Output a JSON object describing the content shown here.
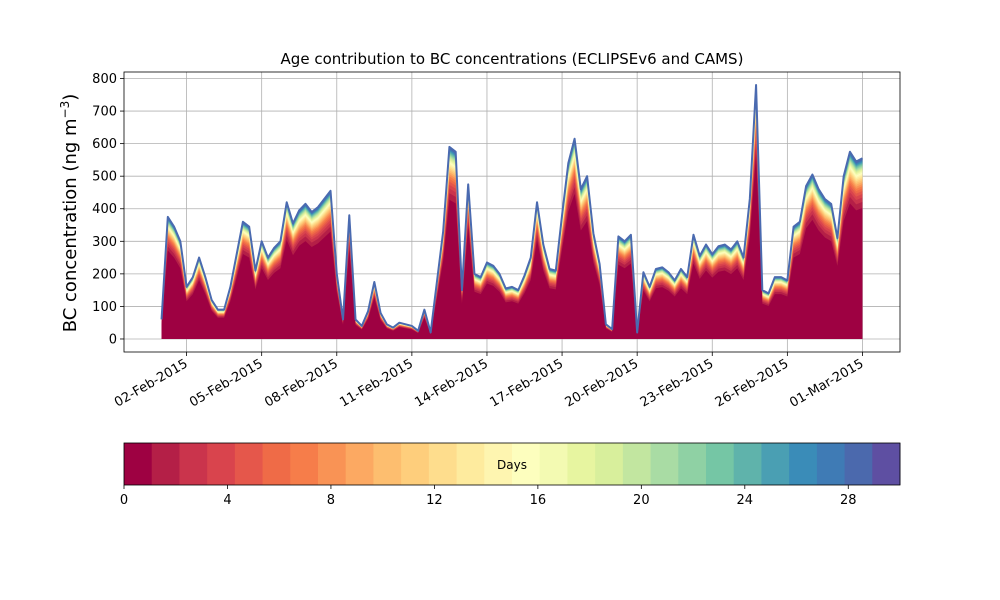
{
  "chart_data": {
    "type": "area",
    "title": "Age contribution to BC concentrations (ECLIPSEv6 and CAMS)",
    "ylabel": "BC concentration (ng m",
    "ylabel_sup": "−3",
    "ylabel_close": ")",
    "xlabel": "",
    "ylim": [
      -40,
      820
    ],
    "yticks": [
      0,
      100,
      200,
      300,
      400,
      500,
      600,
      700,
      800
    ],
    "xlim": [
      "2015-01-30T12:00",
      "2015-03-02T12:00"
    ],
    "x_tick_labels": [
      "02-Feb-2015",
      "05-Feb-2015",
      "08-Feb-2015",
      "11-Feb-2015",
      "14-Feb-2015",
      "17-Feb-2015",
      "20-Feb-2015",
      "23-Feb-2015",
      "26-Feb-2015",
      "01-Mar-2015"
    ],
    "x_tick_dates": [
      "2015-02-02",
      "2015-02-05",
      "2015-02-08",
      "2015-02-11",
      "2015-02-14",
      "2015-02-17",
      "2015-02-20",
      "2015-02-23",
      "2015-02-26",
      "2015-03-01"
    ],
    "grid": true,
    "colorbar": {
      "label": "Days",
      "min": 0,
      "max": 30,
      "ticks": [
        0,
        4,
        8,
        12,
        16,
        20,
        24,
        28
      ],
      "tick_labels": [
        "0",
        "4",
        "8",
        "12",
        "16",
        "20",
        "24",
        "28"
      ],
      "colors": [
        "#9e0142",
        "#b41f47",
        "#ca344c",
        "#d9444d",
        "#e5574b",
        "#ef6b47",
        "#f67d4a",
        "#f99355",
        "#fca962",
        "#fdbe6f",
        "#fece7c",
        "#fedd8d",
        "#feeb9e",
        "#fef5b0",
        "#fdfebe",
        "#f3fab2",
        "#e7f5a0",
        "#d8ef9c",
        "#c2e6a0",
        "#a9dca4",
        "#8fd1a4",
        "#75c6a5",
        "#5fb3ab",
        "#4a9fb3",
        "#3a8cb8",
        "#3f7bb5",
        "#4b69ad",
        "#5e4fa2"
      ]
    },
    "series": [
      {
        "stat": "total",
        "color": "#4a6ab0",
        "x": [
          "2015-02-01T00:00",
          "2015-02-01T06:00",
          "2015-02-01T12:00",
          "2015-02-01T18:00",
          "2015-02-02T00:00",
          "2015-02-02T06:00",
          "2015-02-02T12:00",
          "2015-02-02T18:00",
          "2015-02-03T00:00",
          "2015-02-03T06:00",
          "2015-02-03T12:00",
          "2015-02-03T18:00",
          "2015-02-04T00:00",
          "2015-02-04T06:00",
          "2015-02-04T12:00",
          "2015-02-04T18:00",
          "2015-02-05T00:00",
          "2015-02-05T06:00",
          "2015-02-05T12:00",
          "2015-02-05T18:00",
          "2015-02-06T00:00",
          "2015-02-06T06:00",
          "2015-02-06T12:00",
          "2015-02-06T18:00",
          "2015-02-07T00:00",
          "2015-02-07T06:00",
          "2015-02-07T12:00",
          "2015-02-07T18:00",
          "2015-02-08T00:00",
          "2015-02-08T06:00",
          "2015-02-08T12:00",
          "2015-02-08T18:00",
          "2015-02-09T00:00",
          "2015-02-09T06:00",
          "2015-02-09T12:00",
          "2015-02-09T18:00",
          "2015-02-10T00:00",
          "2015-02-10T06:00",
          "2015-02-10T12:00",
          "2015-02-10T18:00",
          "2015-02-11T00:00",
          "2015-02-11T06:00",
          "2015-02-11T12:00",
          "2015-02-11T18:00",
          "2015-02-12T00:00",
          "2015-02-12T06:00",
          "2015-02-12T12:00",
          "2015-02-12T18:00",
          "2015-02-13T00:00",
          "2015-02-13T06:00",
          "2015-02-13T12:00",
          "2015-02-13T18:00",
          "2015-02-14T00:00",
          "2015-02-14T06:00",
          "2015-02-14T12:00",
          "2015-02-14T18:00",
          "2015-02-15T00:00",
          "2015-02-15T06:00",
          "2015-02-15T12:00",
          "2015-02-15T18:00",
          "2015-02-16T00:00",
          "2015-02-16T06:00",
          "2015-02-16T12:00",
          "2015-02-16T18:00",
          "2015-02-17T00:00",
          "2015-02-17T06:00",
          "2015-02-17T12:00",
          "2015-02-17T18:00",
          "2015-02-18T00:00",
          "2015-02-18T06:00",
          "2015-02-18T12:00",
          "2015-02-18T18:00",
          "2015-02-19T00:00",
          "2015-02-19T06:00",
          "2015-02-19T12:00",
          "2015-02-19T18:00",
          "2015-02-20T00:00",
          "2015-02-20T06:00",
          "2015-02-20T12:00",
          "2015-02-20T18:00",
          "2015-02-21T00:00",
          "2015-02-21T06:00",
          "2015-02-21T12:00",
          "2015-02-21T18:00",
          "2015-02-22T00:00",
          "2015-02-22T06:00",
          "2015-02-22T12:00",
          "2015-02-22T18:00",
          "2015-02-23T00:00",
          "2015-02-23T06:00",
          "2015-02-23T12:00",
          "2015-02-23T18:00",
          "2015-02-24T00:00",
          "2015-02-24T06:00",
          "2015-02-24T12:00",
          "2015-02-24T18:00",
          "2015-02-25T00:00",
          "2015-02-25T06:00",
          "2015-02-25T12:00",
          "2015-02-25T18:00",
          "2015-02-26T00:00",
          "2015-02-26T06:00",
          "2015-02-26T12:00",
          "2015-02-26T18:00",
          "2015-02-27T00:00",
          "2015-02-27T06:00",
          "2015-02-27T12:00",
          "2015-02-27T18:00",
          "2015-02-28T00:00",
          "2015-02-28T06:00",
          "2015-02-28T12:00",
          "2015-02-28T18:00",
          "2015-03-01T00:00"
        ],
        "values": [
          60,
          375,
          345,
          300,
          160,
          190,
          250,
          190,
          120,
          90,
          90,
          160,
          260,
          360,
          345,
          210,
          300,
          250,
          280,
          300,
          420,
          355,
          395,
          415,
          390,
          405,
          430,
          455,
          200,
          60,
          380,
          60,
          40,
          85,
          175,
          80,
          45,
          35,
          50,
          45,
          40,
          25,
          90,
          20,
          175,
          330,
          590,
          575,
          150,
          475,
          200,
          190,
          235,
          225,
          200,
          155,
          160,
          150,
          195,
          250,
          420,
          290,
          215,
          210,
          380,
          540,
          615,
          460,
          500,
          325,
          230,
          45,
          30,
          315,
          300,
          320,
          20,
          205,
          160,
          215,
          220,
          205,
          180,
          215,
          190,
          320,
          255,
          290,
          260,
          285,
          290,
          275,
          300,
          250,
          430,
          780,
          150,
          140,
          190,
          190,
          180,
          345,
          360,
          470,
          505,
          460,
          430,
          415,
          310,
          500,
          575,
          545,
          555
        ]
      }
    ]
  }
}
